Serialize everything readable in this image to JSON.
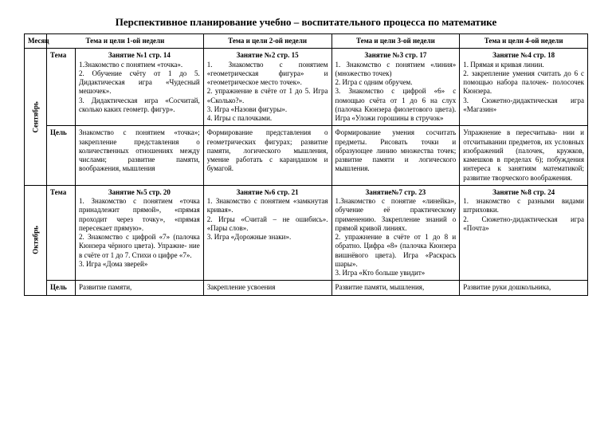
{
  "title": "Перспективное планирование учебно – воспитательного процесса по математике",
  "headers": {
    "month": "Месяц",
    "week1": "Тема и цели 1-ой недели",
    "week2": "Тема и цели 2-ой недели",
    "week3": "Тема и цели 3-ой недели",
    "week4": "Тема и цели 4-ой недели"
  },
  "labels": {
    "tema": "Тема",
    "cel": "Цель"
  },
  "months": {
    "sept": "Сентябрь",
    "oct": "Октябрь"
  },
  "sept": {
    "tema": {
      "w1": {
        "title": "Занятие №1 стр. 14",
        "body": "1.Знакомство с понятием «точка».\n2. Обучение счёту от 1 до 5. Дидактическая игра «Чудесный мешочек».\n3. Дидактическая игра «Сосчитай, сколько каких геометр. фигур»."
      },
      "w2": {
        "title": "Занятие №2 стр. 15",
        "body": "1. Знакомство с понятием «геометрическая фигура» и «геометрическое место точек».\n2. упражнение в счёте от 1 до 5. Игра «Сколько?».\n3. Игра «Назови фигуры».\n4. Игры с палочками."
      },
      "w3": {
        "title": "Занятие №3 стр. 17",
        "body": "1. Знакомство с понятием «линия» (множество точек)\n2. Игра с одним обручем.\n3. Знакомство с цифрой «6» с помощью счёта от 1 до 6 на слух (палочка Кюнзера фиолетового цвета). Игра «Уложи горошины в стручок»"
      },
      "w4": {
        "title": "Занятие №4 стр. 18",
        "body": "1. Прямая и кривая линии.\n2. закрепление умения считать до 6 с помощью набора палочек- полосочек Кюнзера.\n3. Сюжетно-дидактическая игра «Магазин»"
      }
    },
    "cel": {
      "w1": "Знакомство с понятием «точка»; закрепление представления о количественных отношениях между числами; развитие памяти, воображения, мышления",
      "w2": "Формирование представления о геометрических фигурах; развитие памяти, логического мышления, умение работать с карандашом и бумагой.",
      "w3": "Формирование умения сосчитать предметы. Рисовать точки и образующее линию множества точек; развитие памяти и логического мышления.",
      "w4": "Упражнение в пересчитыва- нии и отсчитывании предметов, их условных изображений (палочек, кружков, камешков в пределах 6); побуждения интереса к занятиям математикой; развитие творческого воображения."
    }
  },
  "oct": {
    "tema": {
      "w1": {
        "title": "Занятие №5 стр. 20",
        "body": "1. Знакомство с понятием «точка принадлежит прямой», «прямая проходит через точку», «прямая пересекает прямую».\n2. Знакомство с цифрой «7» (палочка Кюнзера чёрного цвета). Упражне- ние в счёте от 1 до 7. Стихи о цифре «7».\n3. Игра «Дома зверей»"
      },
      "w2": {
        "title": "Занятие №6 стр. 21",
        "body": "1. Знакомство с понятием «замкнутая кривая».\n2. Игры «Считай – не ошибись». «Пары слов».\n3. Игра «Дорожные знаки»."
      },
      "w3": {
        "title": "Занятие№7 стр. 23",
        "body": "1.Знакомство с понятие «линейка», обучение её практическому применению. Закрепление знаний о прямой кривой линиях.\n2. упражнение в счёте от 1 до 8 и обратно. Цифра «8» (палочка Кюнзера вишнёвого цвета). Игра «Раскрась шары».\n3. Игра «Кто больше увидит»"
      },
      "w4": {
        "title": "Занятие №8 стр. 24",
        "body": "1. знакомство с разными видами штриховки.\n2. Сюжетно-дидактическая игра «Почта»"
      }
    },
    "cel": {
      "w1": "Развитие памяти,",
      "w2": "Закрепление усвоения",
      "w3": "Развитие памяти, мышления,",
      "w4": "Развитие руки дошкольника,"
    }
  }
}
